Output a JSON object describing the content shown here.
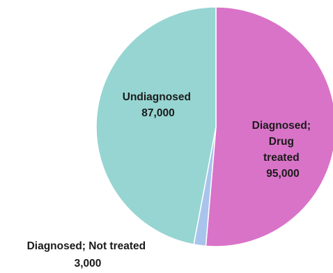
{
  "chart_data": {
    "type": "pie",
    "title": "",
    "slices": [
      {
        "label": "Diagnosed; Drug treated",
        "label_lines": [
          "Diagnosed;",
          "Drug",
          "treated"
        ],
        "value": 95000,
        "value_label": "95,000",
        "color": "#d973c8"
      },
      {
        "label": "Diagnosed; Not treated",
        "label_lines": [
          "Diagnosed; Not treated"
        ],
        "value": 3000,
        "value_label": "3,000",
        "color": "#a9c4ec"
      },
      {
        "label": "Undiagnosed",
        "label_lines": [
          "Undiagnosed"
        ],
        "value": 87000,
        "value_label": "87,000",
        "color": "#96d5d2"
      }
    ],
    "start_angle_deg": 0,
    "direction": "clockwise",
    "legend": "none"
  }
}
